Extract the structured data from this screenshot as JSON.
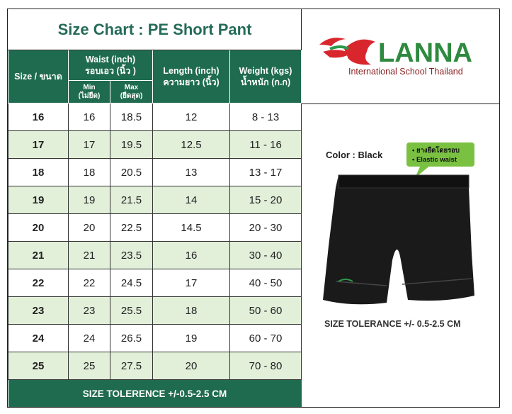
{
  "table": {
    "title": "Size Chart : PE Short Pant",
    "header": {
      "size": "Size / ขนาด",
      "waist_1": "Waist (inch)",
      "waist_2": "รอบเอว (นิ้ว )",
      "min_1": "Min",
      "min_2": "(ไม่ยืด)",
      "max_1": "Max",
      "max_2": "(ยืดสุด)",
      "length_1": "Length (inch)",
      "length_2": "ความยาว (นิ้ว)",
      "weight_1": "Weight (kgs)",
      "weight_2": "น้ำหนัก (ก.ก)"
    },
    "rows": [
      [
        "16",
        "16",
        "18.5",
        "12",
        "8 - 13"
      ],
      [
        "17",
        "17",
        "19.5",
        "12.5",
        "11 - 16"
      ],
      [
        "18",
        "18",
        "20.5",
        "13",
        "13 - 17"
      ],
      [
        "19",
        "19",
        "21.5",
        "14",
        "15 - 20"
      ],
      [
        "20",
        "20",
        "22.5",
        "14.5",
        "20 - 30"
      ],
      [
        "21",
        "21",
        "23.5",
        "16",
        "30 - 40"
      ],
      [
        "22",
        "22",
        "24.5",
        "17",
        "40 - 50"
      ],
      [
        "23",
        "23",
        "25.5",
        "18",
        "50 - 60"
      ],
      [
        "24",
        "24",
        "26.5",
        "19",
        "60 - 70"
      ],
      [
        "25",
        "25",
        "27.5",
        "20",
        "70 - 80"
      ]
    ],
    "footer": "SIZE TOLERENCE +/-0.5-2.5 CM"
  },
  "logo": {
    "name": "LANNA",
    "subtitle": "International School Thailand"
  },
  "product": {
    "color_label": "Color : Black",
    "features": [
      "ยางยืดโดยรอบ",
      "Elastic waist"
    ],
    "tolerance": "SIZE TOLERANCE +/- 0.5-2.5 CM"
  }
}
